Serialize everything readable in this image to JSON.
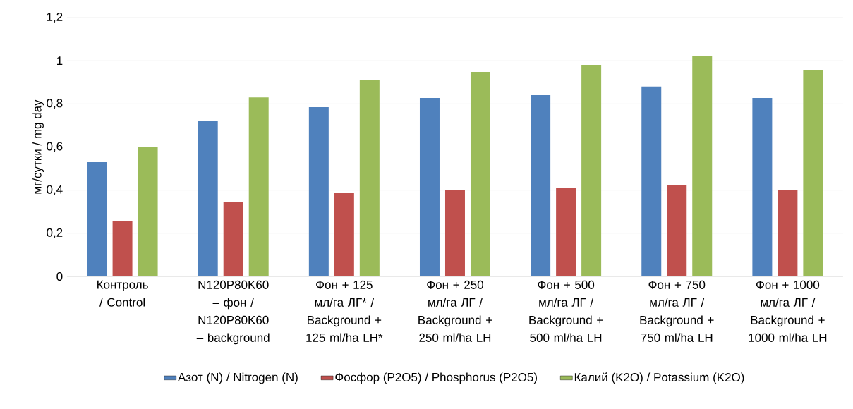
{
  "chart_data": {
    "type": "bar",
    "categories": [
      "Контроль / Control",
      "N120P80K60 – фон / N120P80K60 – background",
      "Фон + 125 мл/га ЛГ* / Background + 125 ml/ha LH*",
      "Фон + 250 мл/га ЛГ / Background + 250 ml/ha LH",
      "Фон + 500 мл/га ЛГ / Background + 500 ml/ha LH",
      "Фон + 750 мл/га ЛГ / Background + 750 ml/ha LH",
      "Фон + 1000 мл/га ЛГ / Background + 1000 ml/ha LH"
    ],
    "series": [
      {
        "name": "Азот (N) / Nitrogen (N)",
        "color": "#4f81bd",
        "values": [
          0.53,
          0.72,
          0.785,
          0.827,
          0.84,
          0.88,
          0.827
        ]
      },
      {
        "name": "Фосфор (P2O5) / Phosphorus (P2O5)",
        "color": "#c0504d",
        "values": [
          0.255,
          0.343,
          0.386,
          0.4,
          0.409,
          0.425,
          0.399
        ]
      },
      {
        "name": "Калий (K2O) / Potassium (K2O)",
        "color": "#9bbb59",
        "values": [
          0.6,
          0.83,
          0.912,
          0.948,
          0.981,
          1.023,
          0.958
        ]
      }
    ],
    "ylabel": "мг/сутки / mg day",
    "ylim": [
      0,
      1.2
    ],
    "yticks": [
      0,
      {
        "value": 0.2,
        "label": "0,2"
      },
      {
        "value": 0.4,
        "label": "0,4"
      },
      {
        "value": 0.6,
        "label": "0,6"
      },
      {
        "value": 0.8,
        "label": "0,8"
      },
      1,
      {
        "value": 1.2,
        "label": "1,2"
      }
    ],
    "grid": "y",
    "legend": "bottom"
  }
}
